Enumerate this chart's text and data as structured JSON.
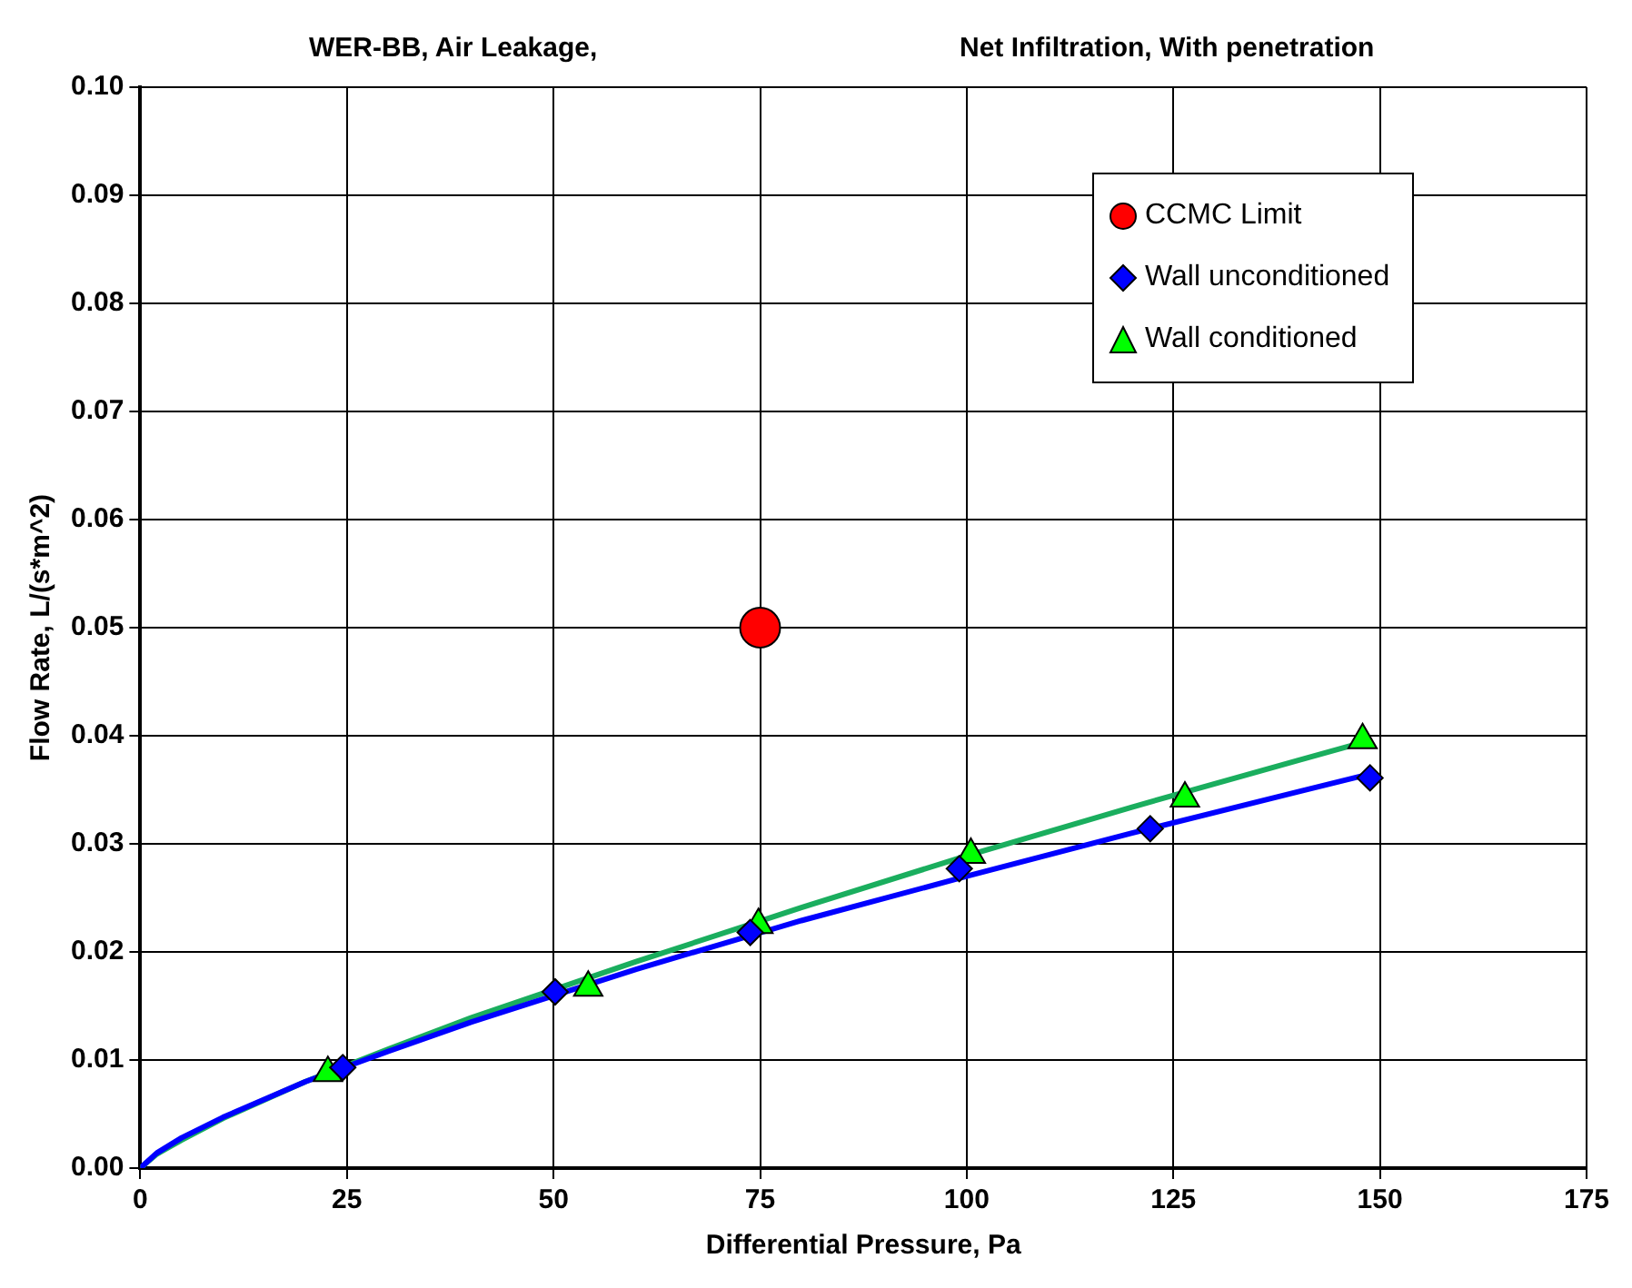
{
  "chart_data": {
    "type": "scatter",
    "title": "WER-BB, Air Leakage,",
    "subtitle": "Net Infiltration, With penetration",
    "xlabel": "Differential Pressure, Pa",
    "ylabel": "Flow Rate, L/(s*m^2)",
    "xlim": [
      0,
      175
    ],
    "xticks": [
      0,
      25,
      50,
      75,
      100,
      125,
      150,
      175
    ],
    "ylim": [
      0,
      0.1
    ],
    "yticks": [
      {
        "value": 0,
        "label": "0.00"
      },
      {
        "value": 0.01,
        "label": "0.01"
      },
      {
        "value": 0.02,
        "label": "0.02"
      },
      {
        "value": 0.03,
        "label": "0.03"
      },
      {
        "value": 0.04,
        "label": "0.04"
      },
      {
        "value": 0.05,
        "label": "0.05"
      },
      {
        "value": 0.06,
        "label": "0.06"
      },
      {
        "value": 0.07,
        "label": "0.07"
      },
      {
        "value": 0.08,
        "label": "0.08"
      },
      {
        "value": 0.09,
        "label": "0.09"
      },
      {
        "value": 0.1,
        "label": "0.10"
      }
    ],
    "grid": true,
    "legend": "top right",
    "series": [
      {
        "type": "line",
        "color": "#0000ff",
        "marker": "none",
        "x": [
          0,
          2,
          5,
          10,
          20,
          30,
          40,
          60,
          80,
          100,
          120,
          140,
          149
        ],
        "values": [
          0,
          0.0014,
          0.0028,
          0.0047,
          0.008,
          0.0108,
          0.0135,
          0.0184,
          0.0229,
          0.027,
          0.031,
          0.0348,
          0.0365
        ]
      },
      {
        "type": "line",
        "color": "#1aae5e",
        "marker": "none",
        "x": [
          0,
          2,
          5,
          10,
          20,
          30,
          40,
          60,
          80,
          100,
          120,
          140,
          148
        ],
        "values": [
          0,
          0.0013,
          0.0026,
          0.0046,
          0.008,
          0.011,
          0.0139,
          0.0191,
          0.0241,
          0.0289,
          0.0334,
          0.0377,
          0.0394
        ]
      },
      {
        "name": "CCMC Limit",
        "color": "#ff0000",
        "marker": "circle",
        "x": [
          75
        ],
        "values": [
          0.05
        ]
      },
      {
        "name": "Wall unconditioned",
        "color": "#0000ff",
        "marker": "diamond",
        "x": [
          24.5,
          50.2,
          73.8,
          99.1,
          122.2,
          148.8
        ],
        "values": [
          0.0093,
          0.0163,
          0.0218,
          0.0277,
          0.0314,
          0.0361
        ]
      },
      {
        "name": "Wall conditioned",
        "color": "#00ff00",
        "marker": "triangle",
        "x": [
          22.7,
          54.2,
          74.8,
          100.5,
          126.4,
          147.9
        ],
        "values": [
          0.0088,
          0.0167,
          0.0225,
          0.029,
          0.0342,
          0.0396
        ]
      }
    ]
  }
}
